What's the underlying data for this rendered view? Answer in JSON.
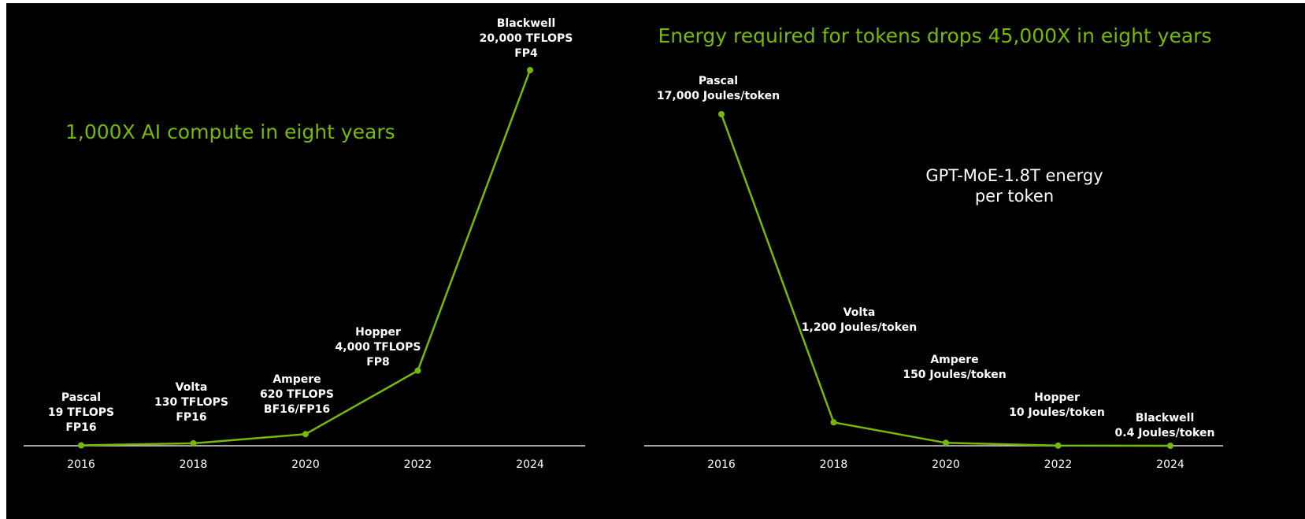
{
  "chart_data": [
    {
      "type": "line",
      "title": "1,000X AI compute in eight years",
      "accent_color": "#76b900",
      "background": "#000000",
      "x": [
        2016,
        2018,
        2020,
        2022,
        2024
      ],
      "tick_labels": [
        "2016",
        "2018",
        "2020",
        "2022",
        "2024"
      ],
      "series": [
        {
          "values": [
            19,
            130,
            620,
            4000,
            20000
          ]
        }
      ],
      "ylim": [
        0,
        20000
      ],
      "grid": false,
      "point_labels": [
        [
          "Pascal",
          "19 TFLOPS",
          "FP16"
        ],
        [
          "Volta",
          "130 TFLOPS",
          "FP16"
        ],
        [
          "Ampere",
          "620 TFLOPS",
          "BF16/FP16"
        ],
        [
          "Hopper",
          "4,000 TFLOPS",
          "FP8"
        ],
        [
          "Blackwell",
          "20,000 TFLOPS",
          "FP4"
        ]
      ]
    },
    {
      "type": "line",
      "title": "Energy required for tokens drops 45,000X in eight years",
      "subtitle": "GPT-MoE-1.8T energy per token",
      "accent_color": "#76b900",
      "background": "#000000",
      "x": [
        2016,
        2018,
        2020,
        2022,
        2024
      ],
      "tick_labels": [
        "2016",
        "2018",
        "2020",
        "2022",
        "2024"
      ],
      "series": [
        {
          "values": [
            17000,
            1200,
            150,
            10,
            0.4
          ]
        }
      ],
      "ylim": [
        0,
        17000
      ],
      "grid": false,
      "point_labels": [
        [
          "Pascal",
          "17,000 Joules/token"
        ],
        [
          "Volta",
          "1,200 Joules/token"
        ],
        [
          "Ampere",
          "150 Joules/token"
        ],
        [
          "Hopper",
          "10 Joules/token"
        ],
        [
          "Blackwell",
          "0.4 Joules/token"
        ]
      ]
    }
  ]
}
